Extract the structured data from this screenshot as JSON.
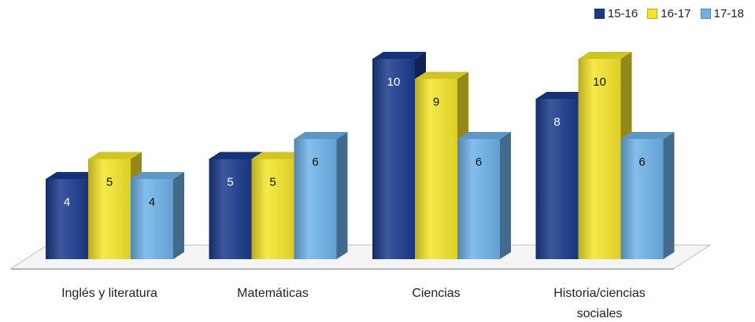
{
  "chart_data": {
    "type": "bar",
    "categories": [
      "Inglés y literatura",
      "Matemáticas",
      "Ciencias",
      "Historia/ciencias sociales"
    ],
    "series": [
      {
        "name": "15-16",
        "values": [
          4,
          5,
          10,
          8
        ],
        "color": "#1a3a8c"
      },
      {
        "name": "16-17",
        "values": [
          5,
          5,
          9,
          10
        ],
        "color": "#f5e52a"
      },
      {
        "name": "17-18",
        "values": [
          4,
          6,
          6,
          6
        ],
        "color": "#6eb2e8"
      }
    ],
    "ylim": [
      0,
      12
    ],
    "legend_position": "top-right",
    "grid": false,
    "style": "3d-column"
  }
}
